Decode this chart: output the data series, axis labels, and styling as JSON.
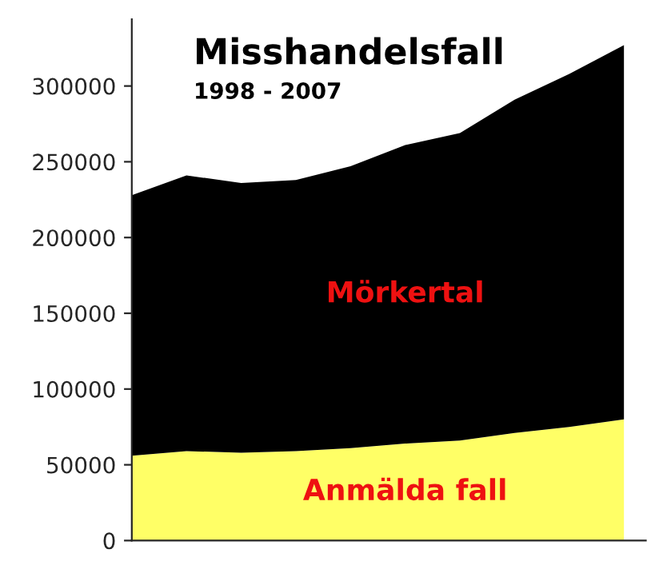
{
  "chart_data": {
    "type": "area",
    "title": "Misshandelsfall",
    "subtitle": "1998 - 2007",
    "stacked": true,
    "categories": [
      null,
      null,
      null,
      null,
      null,
      null,
      null,
      null,
      null,
      null
    ],
    "series": [
      {
        "name": "Anmälda fall",
        "color": "#ffff66",
        "values": [
          56000,
          59000,
          58000,
          59000,
          61000,
          64000,
          66000,
          71000,
          75000,
          80000
        ]
      },
      {
        "name": "Mörkertal",
        "color": "#000000",
        "values": [
          172000,
          182000,
          178000,
          179000,
          186000,
          197000,
          203000,
          220000,
          233000,
          247000
        ]
      }
    ],
    "ylim": [
      0,
      344000
    ],
    "yticks": [
      0,
      50000,
      100000,
      150000,
      200000,
      250000,
      300000
    ],
    "grid": false,
    "legend": false
  }
}
